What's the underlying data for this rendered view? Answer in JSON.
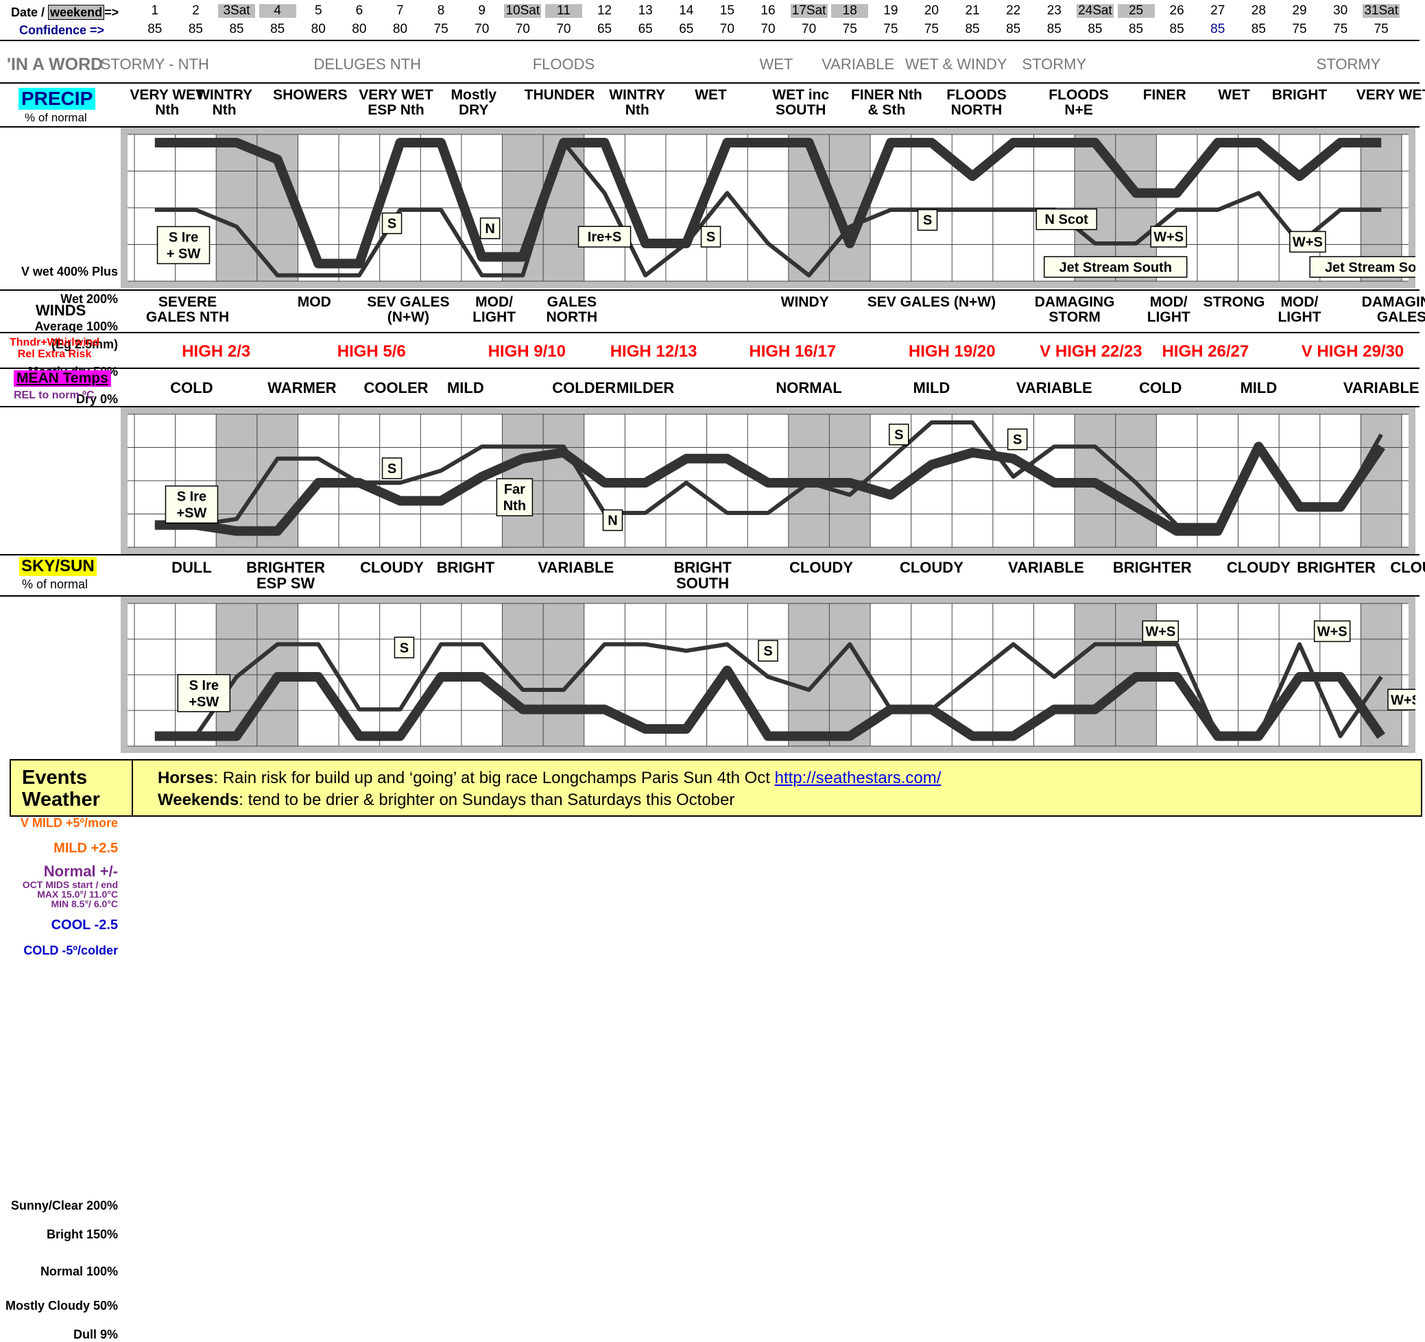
{
  "header": {
    "date_label": "Date / ",
    "weekend_tag": "weekend",
    "arrow": "=>",
    "confidence_label": "Confidence =>",
    "dates": [
      "1",
      "2",
      "3Sat",
      "4",
      "5",
      "6",
      "7",
      "8",
      "9",
      "10Sat",
      "11",
      "12",
      "13",
      "14",
      "15",
      "16",
      "17Sat",
      "18",
      "19",
      "20",
      "21",
      "22",
      "23",
      "24Sat",
      "25",
      "26",
      "27",
      "28",
      "29",
      "30",
      "31Sat"
    ],
    "confidence": [
      "85",
      "85",
      "85",
      "85",
      "80",
      "80",
      "80",
      "75",
      "70",
      "70",
      "70",
      "65",
      "65",
      "65",
      "70",
      "70",
      "70",
      "75",
      "75",
      "75",
      "85",
      "85",
      "85",
      "85",
      "85",
      "85",
      "85",
      "85",
      "75",
      "75",
      "75"
    ],
    "weekend_days": [
      3,
      4,
      10,
      11,
      17,
      18,
      24,
      25,
      31
    ]
  },
  "in_a_word": {
    "label": "'IN A WORD",
    "items": [
      {
        "text": "STORMY - NTH",
        "col": 1.0
      },
      {
        "text": "DELUGES NTH",
        "col": 6.2
      },
      {
        "text": "FLOODS",
        "col": 11.0
      },
      {
        "text": "WET",
        "col": 16.2
      },
      {
        "text": "VARIABLE",
        "col": 18.2
      },
      {
        "text": "WET & WINDY",
        "col": 20.6
      },
      {
        "text": "STORMY",
        "col": 23.0
      },
      {
        "text": "STORMY",
        "col": 30.2
      }
    ]
  },
  "precip_row": {
    "label": "PRECIP",
    "sub": "% of normal",
    "items": [
      {
        "text": "VERY WET\nNth",
        "col": 1.3
      },
      {
        "text": "WINTRY\nNth",
        "col": 2.7
      },
      {
        "text": "SHOWERS",
        "col": 4.8
      },
      {
        "text": "VERY WET\nESP Nth",
        "col": 6.9
      },
      {
        "text": "Mostly\nDRY",
        "col": 8.8
      },
      {
        "text": "THUNDER",
        "col": 10.9
      },
      {
        "text": "WINTRY\nNth",
        "col": 12.8
      },
      {
        "text": "WET",
        "col": 14.6
      },
      {
        "text": "WET inc\nSOUTH",
        "col": 16.8
      },
      {
        "text": "FINER Nth\n& Sth",
        "col": 18.9
      },
      {
        "text": "FLOODS\nNORTH",
        "col": 21.1
      },
      {
        "text": "FLOODS\nN+E",
        "col": 23.6
      },
      {
        "text": "FINER",
        "col": 25.7
      },
      {
        "text": "WET",
        "col": 27.4
      },
      {
        "text": "BRIGHT",
        "col": 29.0
      },
      {
        "text": "VERY WET",
        "col": 31.3
      }
    ]
  },
  "precip_chart": {
    "ylabels": [
      "V wet 400% Plus",
      "Wet  200%",
      "Average  100%",
      "(Eg 2.5mm)",
      "Mostly dry 50%",
      "Dry    0%"
    ],
    "boxes": [
      {
        "text": "S Ire\n+ SW",
        "x": 1.7,
        "y": 95
      },
      {
        "text": "S",
        "x": 6.8,
        "y": 160
      },
      {
        "text": "N",
        "x": 9.2,
        "y": 145
      },
      {
        "text": "Ire+S",
        "x": 12.0,
        "y": 120
      },
      {
        "text": "S",
        "x": 14.6,
        "y": 120
      },
      {
        "text": "S",
        "x": 19.9,
        "y": 170
      },
      {
        "text": "N Scot",
        "x": 23.3,
        "y": 172
      },
      {
        "text": "W+S",
        "x": 25.8,
        "y": 120
      },
      {
        "text": "W+S",
        "x": 29.2,
        "y": 105
      },
      {
        "text": "Jet Stream South",
        "x": 24.5,
        "y": 30
      },
      {
        "text": "Jet Stream South",
        "x": 31.0,
        "y": 30
      }
    ]
  },
  "winds_row": {
    "label": "WINDS",
    "items": [
      {
        "text": "SEVERE\nGALES NTH",
        "col": 1.8
      },
      {
        "text": "MOD",
        "col": 4.9
      },
      {
        "text": "SEV GALES\n(N+W)",
        "col": 7.2
      },
      {
        "text": "MOD/\nLIGHT",
        "col": 9.3
      },
      {
        "text": "GALES\nNORTH",
        "col": 11.2
      },
      {
        "text": "WINDY",
        "col": 16.9
      },
      {
        "text": "SEV GALES (N+W)",
        "col": 20.0
      },
      {
        "text": "DAMAGING\nSTORM",
        "col": 23.5
      },
      {
        "text": "MOD/\nLIGHT",
        "col": 25.8
      },
      {
        "text": "STRONG",
        "col": 27.4
      },
      {
        "text": "MOD/\nLIGHT",
        "col": 29.0
      },
      {
        "text": "DAMAGING\nGALES",
        "col": 31.5
      }
    ]
  },
  "thunder_row": {
    "label": "Thndr+Whirlwind\nRel Extra Risk",
    "items": [
      {
        "text": "HIGH 2/3",
        "col": 2.5
      },
      {
        "text": "HIGH 5/6",
        "col": 6.3
      },
      {
        "text": "HIGH 9/10",
        "col": 10.1
      },
      {
        "text": "HIGH 12/13",
        "col": 13.2
      },
      {
        "text": "HIGH 16/17",
        "col": 16.6
      },
      {
        "text": "HIGH 19/20",
        "col": 20.5
      },
      {
        "text": "V HIGH 22/23",
        "col": 23.9
      },
      {
        "text": "HIGH 26/27",
        "col": 26.7
      },
      {
        "text": "V HIGH 29/30",
        "col": 30.3
      }
    ]
  },
  "mean_row": {
    "label": "MEAN Temps",
    "sub": "REL to norm ºC",
    "items": [
      {
        "text": "COLD",
        "col": 1.9
      },
      {
        "text": "WARMER",
        "col": 4.6
      },
      {
        "text": "COOLER",
        "col": 6.9
      },
      {
        "text": "MILD",
        "col": 8.6
      },
      {
        "text": "COLDER",
        "col": 11.5
      },
      {
        "text": "MILDER",
        "col": 13.0
      },
      {
        "text": "NORMAL",
        "col": 17.0
      },
      {
        "text": "MILD",
        "col": 20.0
      },
      {
        "text": "VARIABLE",
        "col": 23.0
      },
      {
        "text": "COLD",
        "col": 25.6
      },
      {
        "text": "MILD",
        "col": 28.0
      },
      {
        "text": "VARIABLE",
        "col": 31.0
      }
    ]
  },
  "temp_chart": {
    "ylabels": [
      {
        "text": "V MILD +5º/more",
        "color": "#ff6600"
      },
      {
        "text": "MILD +2.5",
        "color": "#ff6600"
      },
      {
        "text": "Normal +/-",
        "color": "#7a2a8a"
      },
      {
        "text": "OCT MIDS start / end",
        "color": "#7a2a8a"
      },
      {
        "text": "MAX 15.0°/ 11.0°C",
        "color": "#7a2a8a"
      },
      {
        "text": "MIN 8.5°/ 6.0°C",
        "color": "#7a2a8a"
      },
      {
        "text": "COOL -2.5",
        "color": "#0000cc"
      },
      {
        "text": "COLD -5º/colder",
        "color": "#0000cc"
      }
    ],
    "boxes": [
      {
        "text": "S Ire\n+SW",
        "x": 1.9,
        "y": -1.8
      },
      {
        "text": "S",
        "x": 6.8,
        "y": 1.2
      },
      {
        "text": "Far\nNth",
        "x": 9.8,
        "y": -1.2
      },
      {
        "text": "N",
        "x": 12.2,
        "y": -3.1
      },
      {
        "text": "S",
        "x": 19.2,
        "y": 4.0
      },
      {
        "text": "S",
        "x": 22.1,
        "y": 3.6
      }
    ]
  },
  "sky_row": {
    "label": "SKY/SUN",
    "sub": "% of normal",
    "items": [
      {
        "text": "DULL",
        "col": 1.9
      },
      {
        "text": "BRIGHTER\nESP SW",
        "col": 4.2
      },
      {
        "text": "CLOUDY",
        "col": 6.8
      },
      {
        "text": "BRIGHT",
        "col": 8.6
      },
      {
        "text": "VARIABLE",
        "col": 11.3
      },
      {
        "text": "BRIGHT\nSOUTH",
        "col": 14.4
      },
      {
        "text": "CLOUDY",
        "col": 17.3
      },
      {
        "text": "CLOUDY",
        "col": 20.0
      },
      {
        "text": "VARIABLE",
        "col": 22.8
      },
      {
        "text": "BRIGHTER",
        "col": 25.4
      },
      {
        "text": "CLOUDY",
        "col": 28.0
      },
      {
        "text": "BRIGHTER",
        "col": 29.9
      },
      {
        "text": "CLOUDY",
        "col": 32.0
      }
    ]
  },
  "sun_chart": {
    "ylabels": [
      "Sunny/Clear 200%",
      "Bright 150%",
      "Normal 100%",
      "Mostly Cloudy 50%",
      "Dull 9%"
    ],
    "boxes": [
      {
        "text": "S Ire\n+SW",
        "x": 2.2,
        "y": 75
      },
      {
        "text": "S",
        "x": 7.1,
        "y": 145
      },
      {
        "text": "S",
        "x": 16.0,
        "y": 140
      },
      {
        "text": "W+S",
        "x": 25.6,
        "y": 170
      },
      {
        "text": "W+S",
        "x": 29.8,
        "y": 170
      },
      {
        "text": "W+S",
        "x": 31.6,
        "y": 65
      }
    ]
  },
  "events": {
    "title1": "Events",
    "title2": "Weather",
    "line1_bold": "Horses",
    "line1_text": ":   Rain risk for build up and ‘going’ at big race Longchamps Paris Sun 4th Oct  ",
    "line1_link": "http://seathestars.com/",
    "line2_bold": "Weekends",
    "line2_text": ": tend to be drier & brighter on Sundays than Saturdays this October"
  },
  "colors": {
    "precip_label_bg": "#00ffff",
    "mean_label_bg": "#ff00ff",
    "sky_label_bg": "#ffff00",
    "thunder_text": "#ff0000",
    "events_bg": "#ffff99",
    "weekend_shade": "#bdbdbd",
    "line": "#333333"
  },
  "chart_data": [
    {
      "type": "line",
      "title": "PRECIP % of normal",
      "x": [
        1,
        2,
        3,
        4,
        5,
        6,
        7,
        8,
        9,
        10,
        11,
        12,
        13,
        14,
        15,
        16,
        17,
        18,
        19,
        20,
        21,
        22,
        23,
        24,
        25,
        26,
        27,
        28,
        29,
        30,
        31
      ],
      "series": [
        {
          "values": [
            400,
            400,
            400,
            350,
            40,
            40,
            400,
            400,
            60,
            60,
            400,
            400,
            100,
            100,
            400,
            400,
            400,
            100,
            400,
            400,
            300,
            400,
            400,
            400,
            250,
            250,
            400,
            400,
            300,
            400,
            400
          ]
        },
        {
          "values": [
            200,
            200,
            150,
            5,
            5,
            5,
            200,
            200,
            5,
            5,
            400,
            250,
            5,
            100,
            250,
            100,
            5,
            150,
            200,
            200,
            200,
            200,
            200,
            100,
            100,
            200,
            200,
            250,
            100,
            200,
            200
          ]
        }
      ],
      "ylim": [
        0,
        400
      ]
    },
    {
      "type": "line",
      "title": "MEAN Temps REL to norm ºC",
      "x": [
        1,
        2,
        3,
        4,
        5,
        6,
        7,
        8,
        9,
        10,
        11,
        12,
        13,
        14,
        15,
        16,
        17,
        18,
        19,
        20,
        21,
        22,
        23,
        24,
        25,
        26,
        27,
        28,
        29,
        30,
        31
      ],
      "series": [
        {
          "values": [
            -3.5,
            -3.5,
            -4,
            -4,
            0,
            0,
            -1.5,
            -1.5,
            0.5,
            2,
            2.5,
            0,
            0,
            2,
            2,
            0,
            0,
            0,
            -1,
            1.5,
            2.5,
            2,
            0,
            0,
            -2,
            -4,
            -4,
            3,
            -2,
            -2,
            3
          ]
        },
        {
          "values": [
            -3.5,
            -3.5,
            -3,
            2,
            2,
            0,
            0,
            1,
            3,
            3,
            3,
            -2.5,
            -2.5,
            0,
            -2.5,
            -2.5,
            0,
            -1,
            2,
            5,
            5,
            0.5,
            3,
            3,
            0,
            -3.5,
            -3.5,
            3,
            -2,
            -2,
            4
          ]
        }
      ],
      "ylim": [
        -5,
        5
      ]
    },
    {
      "type": "line",
      "title": "SKY/SUN % of normal",
      "x": [
        1,
        2,
        3,
        4,
        5,
        6,
        7,
        8,
        9,
        10,
        11,
        12,
        13,
        14,
        15,
        16,
        17,
        18,
        19,
        20,
        21,
        22,
        23,
        24,
        25,
        26,
        27,
        28,
        29,
        30,
        31
      ],
      "series": [
        {
          "values": [
            9,
            9,
            9,
            100,
            100,
            9,
            9,
            100,
            100,
            50,
            50,
            50,
            20,
            20,
            110,
            9,
            9,
            9,
            50,
            50,
            9,
            9,
            50,
            50,
            100,
            100,
            9,
            9,
            100,
            100,
            9
          ]
        },
        {
          "values": [
            9,
            9,
            100,
            150,
            150,
            50,
            50,
            150,
            150,
            80,
            80,
            150,
            150,
            140,
            150,
            100,
            80,
            150,
            50,
            50,
            100,
            150,
            100,
            150,
            150,
            150,
            9,
            9,
            150,
            9,
            100
          ]
        }
      ],
      "ylim": [
        0,
        200
      ]
    }
  ]
}
